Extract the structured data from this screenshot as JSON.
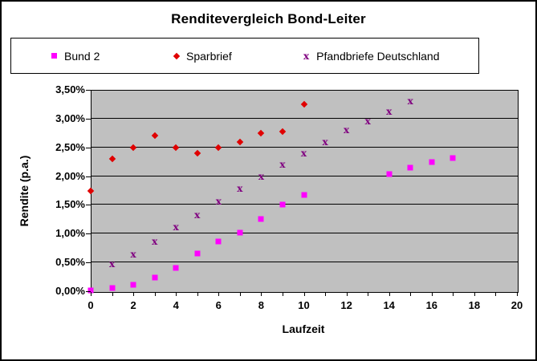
{
  "chart_data": {
    "type": "scatter",
    "title": "Renditevergleich Bond-Leiter",
    "xlabel": "Laufzeit",
    "ylabel": "Rendite (p.a.)",
    "xlim": [
      0,
      20
    ],
    "ylim": [
      0,
      3.5
    ],
    "y_unit": "percent",
    "grid": "horizontal",
    "legend_position": "top",
    "plot_bg_color": "#C0C0C0",
    "x_major_ticks": [
      0,
      2,
      4,
      6,
      8,
      10,
      12,
      14,
      16,
      18,
      20
    ],
    "x_minor_tick_step": 1,
    "y_ticks": [
      0,
      0.5,
      1,
      1.5,
      2,
      2.5,
      3,
      3.5
    ],
    "y_tick_labels": [
      "0,00%",
      "0,50%",
      "1,00%",
      "1,50%",
      "2,00%",
      "2,50%",
      "3,00%",
      "3,50%"
    ],
    "series": [
      {
        "name": "Bund 2",
        "marker": "square",
        "color": "#FF00FF",
        "points": [
          [
            0,
            0.01
          ],
          [
            1,
            0.05
          ],
          [
            2,
            0.11
          ],
          [
            3,
            0.24
          ],
          [
            4,
            0.4
          ],
          [
            5,
            0.65
          ],
          [
            6,
            0.87
          ],
          [
            7,
            1.02
          ],
          [
            8,
            1.25
          ],
          [
            9,
            1.5
          ],
          [
            10,
            1.67
          ],
          [
            14,
            2.03
          ],
          [
            15,
            2.15
          ],
          [
            16,
            2.24
          ],
          [
            17,
            2.31
          ]
        ]
      },
      {
        "name": "Sparbrief",
        "marker": "diamond",
        "color": "#E00000",
        "points": [
          [
            0,
            1.75
          ],
          [
            1,
            2.3
          ],
          [
            2,
            2.5
          ],
          [
            3,
            2.7
          ],
          [
            4,
            2.5
          ],
          [
            5,
            2.4
          ],
          [
            6,
            2.5
          ],
          [
            7,
            2.6
          ],
          [
            8,
            2.75
          ],
          [
            9,
            2.77
          ],
          [
            10,
            3.25
          ]
        ]
      },
      {
        "name": "Pfandbriefe Deutschland",
        "marker": "x",
        "color": "#800080",
        "points": [
          [
            1,
            0.47
          ],
          [
            2,
            0.64
          ],
          [
            3,
            0.87
          ],
          [
            4,
            1.11
          ],
          [
            5,
            1.33
          ],
          [
            6,
            1.56
          ],
          [
            7,
            1.78
          ],
          [
            8,
            2.0
          ],
          [
            9,
            2.2
          ],
          [
            10,
            2.4
          ],
          [
            11,
            2.6
          ],
          [
            12,
            2.8
          ],
          [
            13,
            2.95
          ],
          [
            14,
            3.12
          ],
          [
            15,
            3.3
          ]
        ]
      }
    ]
  }
}
